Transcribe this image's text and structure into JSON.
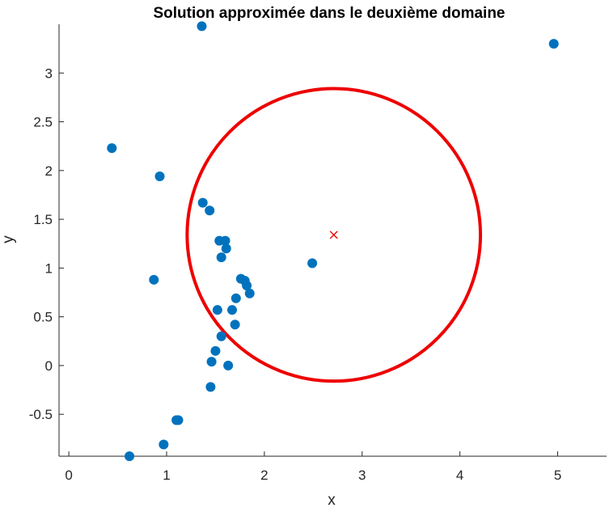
{
  "chart_data": {
    "type": "scatter",
    "title": "Solution approximée dans le deuxième domaine",
    "xlabel": "x",
    "ylabel": "y",
    "xlim": [
      -0.1,
      5.5
    ],
    "ylim": [
      -0.93,
      3.5
    ],
    "xticks": [
      0,
      1,
      2,
      3,
      4,
      5
    ],
    "xtick_labels": [
      "0",
      "1",
      "2",
      "3",
      "4",
      "5"
    ],
    "yticks": [
      -0.5,
      0,
      0.5,
      1,
      1.5,
      2,
      2.5,
      3
    ],
    "ytick_labels": [
      "-0.5",
      "0",
      "0.5",
      "1",
      "1.5",
      "2",
      "2.5",
      "3"
    ],
    "grid": false,
    "legend": "none",
    "points": {
      "color": "#0072BD",
      "x": [
        1.36,
        4.96,
        0.44,
        0.93,
        1.37,
        1.44,
        1.54,
        1.6,
        1.61,
        1.56,
        2.49,
        0.87,
        1.76,
        1.8,
        1.82,
        1.85,
        1.71,
        1.52,
        1.67,
        1.7,
        1.56,
        1.5,
        1.46,
        1.63,
        1.45,
        1.1,
        1.12,
        0.97,
        0.62
      ],
      "y": [
        3.48,
        3.3,
        2.23,
        1.94,
        1.67,
        1.59,
        1.28,
        1.28,
        1.2,
        1.11,
        1.05,
        0.88,
        0.89,
        0.87,
        0.82,
        0.74,
        0.69,
        0.57,
        0.57,
        0.42,
        0.3,
        0.15,
        0.04,
        0.0,
        -0.22,
        -0.56,
        -0.56,
        -0.81,
        -0.93
      ]
    },
    "circle": {
      "center_x": 2.71,
      "center_y": 1.34,
      "radius": 1.5,
      "color": "#EE0000"
    },
    "center_marker": {
      "x": 2.71,
      "y": 1.34,
      "symbol": "x",
      "color": "#EE0000"
    }
  }
}
